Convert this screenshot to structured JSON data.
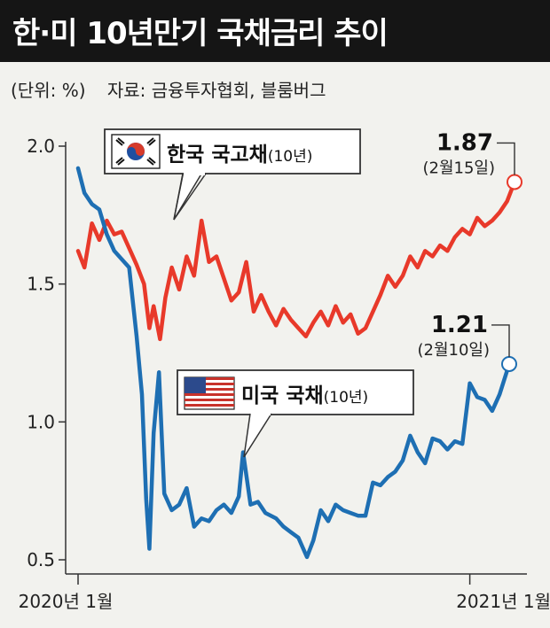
{
  "header": {
    "title": "한·미 10년만기 국채금리 추이"
  },
  "meta": {
    "unit": "(단위: %)",
    "source": "자료: 금융투자협회, 블룸버그"
  },
  "colors": {
    "korea": "#e8392a",
    "us": "#1e6fb3",
    "header_bg": "#151515"
  },
  "chart_data": {
    "type": "line",
    "title": "한·미 10년만기 국채금리 추이",
    "ylabel": "(단위: %)",
    "ylim": [
      0.5,
      2.0
    ],
    "y_ticks": [
      {
        "value": 2.0,
        "label": "2.0"
      },
      {
        "value": 1.5,
        "label": "1.5"
      },
      {
        "value": 1.0,
        "label": "1.0"
      },
      {
        "value": 0.5,
        "label": "0.5"
      }
    ],
    "x_range": [
      "2020-01-02",
      "2021-02-15"
    ],
    "x_ticks": [
      {
        "date": "2020-01-02",
        "label": "2020년 1월"
      },
      {
        "date": "2021-01-04",
        "label": "2021년 1월"
      }
    ],
    "series": [
      {
        "name": "한국 국고채(10년)",
        "name_main": "한국 국고채",
        "name_sub": "(10년)",
        "flag": "korea-flag",
        "color": "#e8392a",
        "x": [
          "2020-01-02",
          "2020-01-08",
          "2020-01-15",
          "2020-01-22",
          "2020-01-29",
          "2020-02-05",
          "2020-02-12",
          "2020-02-19",
          "2020-02-26",
          "2020-03-04",
          "2020-03-09",
          "2020-03-13",
          "2020-03-19",
          "2020-03-24",
          "2020-03-30",
          "2020-04-06",
          "2020-04-13",
          "2020-04-20",
          "2020-04-27",
          "2020-05-04",
          "2020-05-11",
          "2020-05-18",
          "2020-05-25",
          "2020-06-01",
          "2020-06-08",
          "2020-06-15",
          "2020-06-22",
          "2020-06-29",
          "2020-07-06",
          "2020-07-13",
          "2020-07-20",
          "2020-07-27",
          "2020-08-03",
          "2020-08-10",
          "2020-08-17",
          "2020-08-24",
          "2020-08-31",
          "2020-09-07",
          "2020-09-14",
          "2020-09-21",
          "2020-09-28",
          "2020-10-05",
          "2020-10-12",
          "2020-10-19",
          "2020-10-26",
          "2020-11-02",
          "2020-11-09",
          "2020-11-16",
          "2020-11-23",
          "2020-11-30",
          "2020-12-07",
          "2020-12-14",
          "2020-12-21",
          "2020-12-28",
          "2021-01-04",
          "2021-01-11",
          "2021-01-18",
          "2021-01-25",
          "2021-02-01",
          "2021-02-08",
          "2021-02-15"
        ],
        "values": [
          1.62,
          1.56,
          1.72,
          1.66,
          1.73,
          1.68,
          1.69,
          1.63,
          1.57,
          1.5,
          1.34,
          1.42,
          1.3,
          1.45,
          1.56,
          1.48,
          1.6,
          1.53,
          1.73,
          1.58,
          1.6,
          1.52,
          1.44,
          1.47,
          1.58,
          1.4,
          1.46,
          1.4,
          1.35,
          1.41,
          1.37,
          1.34,
          1.31,
          1.36,
          1.4,
          1.35,
          1.42,
          1.36,
          1.39,
          1.32,
          1.34,
          1.4,
          1.46,
          1.53,
          1.49,
          1.53,
          1.6,
          1.56,
          1.62,
          1.6,
          1.64,
          1.62,
          1.67,
          1.7,
          1.68,
          1.74,
          1.71,
          1.73,
          1.76,
          1.8,
          1.87
        ],
        "last_label_value": "1.87",
        "last_label_date": "(2월15일)"
      },
      {
        "name": "미국 국채(10년)",
        "name_main": "미국 국채",
        "name_sub": "(10년)",
        "flag": "us-flag",
        "color": "#1e6fb3",
        "x": [
          "2020-01-02",
          "2020-01-08",
          "2020-01-15",
          "2020-01-22",
          "2020-01-29",
          "2020-02-05",
          "2020-02-12",
          "2020-02-19",
          "2020-02-26",
          "2020-03-02",
          "2020-03-06",
          "2020-03-09",
          "2020-03-13",
          "2020-03-18",
          "2020-03-23",
          "2020-03-30",
          "2020-04-06",
          "2020-04-13",
          "2020-04-20",
          "2020-04-27",
          "2020-05-04",
          "2020-05-11",
          "2020-05-18",
          "2020-05-25",
          "2020-06-01",
          "2020-06-05",
          "2020-06-12",
          "2020-06-19",
          "2020-06-26",
          "2020-07-06",
          "2020-07-13",
          "2020-07-20",
          "2020-07-27",
          "2020-08-04",
          "2020-08-10",
          "2020-08-17",
          "2020-08-24",
          "2020-08-31",
          "2020-09-07",
          "2020-09-14",
          "2020-09-21",
          "2020-09-28",
          "2020-10-05",
          "2020-10-12",
          "2020-10-19",
          "2020-10-26",
          "2020-11-02",
          "2020-11-09",
          "2020-11-16",
          "2020-11-23",
          "2020-11-30",
          "2020-12-07",
          "2020-12-14",
          "2020-12-21",
          "2020-12-28",
          "2021-01-04",
          "2021-01-11",
          "2021-01-18",
          "2021-01-25",
          "2021-02-01",
          "2021-02-10"
        ],
        "values": [
          1.92,
          1.83,
          1.79,
          1.77,
          1.68,
          1.62,
          1.59,
          1.56,
          1.31,
          1.1,
          0.72,
          0.54,
          0.96,
          1.18,
          0.74,
          0.68,
          0.7,
          0.76,
          0.62,
          0.65,
          0.64,
          0.68,
          0.7,
          0.67,
          0.73,
          0.89,
          0.7,
          0.71,
          0.67,
          0.65,
          0.62,
          0.6,
          0.58,
          0.51,
          0.57,
          0.68,
          0.64,
          0.7,
          0.68,
          0.67,
          0.66,
          0.66,
          0.78,
          0.77,
          0.8,
          0.82,
          0.86,
          0.95,
          0.89,
          0.85,
          0.94,
          0.93,
          0.9,
          0.93,
          0.92,
          1.14,
          1.09,
          1.08,
          1.04,
          1.1,
          1.21
        ],
        "last_label_value": "1.21",
        "last_label_date": "(2월10일)"
      }
    ]
  }
}
